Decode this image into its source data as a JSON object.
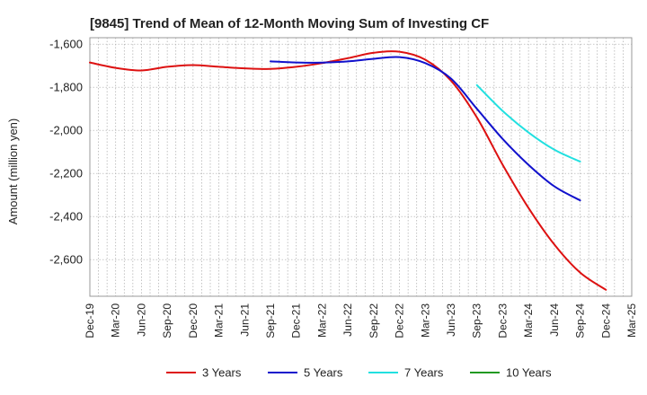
{
  "chart_data": {
    "type": "line",
    "title": "[9845]  Trend of Mean of 12-Month Moving Sum of Investing CF",
    "xlabel": "",
    "ylabel": "Amount (million yen)",
    "ylim": [
      -2770,
      -1570
    ],
    "yticks": [
      -1600,
      -1800,
      -2000,
      -2200,
      -2400,
      -2600
    ],
    "ytick_labels": [
      "-1,600",
      "-1,800",
      "-2,000",
      "-2,200",
      "-2,400",
      "-2,600"
    ],
    "grid": true,
    "legend_position": "bottom",
    "xtick_labels": [
      "Dec-19",
      "Mar-20",
      "Jun-20",
      "Sep-20",
      "Dec-20",
      "Mar-21",
      "Jun-21",
      "Sep-21",
      "Dec-21",
      "Mar-22",
      "Jun-22",
      "Sep-22",
      "Dec-22",
      "Mar-23",
      "Jun-23",
      "Sep-23",
      "Dec-23",
      "Mar-24",
      "Jun-24",
      "Sep-24",
      "Dec-24",
      "Mar-25"
    ],
    "x_start": "Dec-19",
    "x_end": "Mar-25",
    "series": [
      {
        "name": "3 Years",
        "color": "#dd1111",
        "points": [
          [
            "Dec-19",
            -1685
          ],
          [
            "Mar-20",
            -1710
          ],
          [
            "Jun-20",
            -1722
          ],
          [
            "Sep-20",
            -1705
          ],
          [
            "Dec-20",
            -1697
          ],
          [
            "Mar-21",
            -1705
          ],
          [
            "Jun-21",
            -1712
          ],
          [
            "Sep-21",
            -1715
          ],
          [
            "Dec-21",
            -1705
          ],
          [
            "Mar-22",
            -1688
          ],
          [
            "Jun-22",
            -1665
          ],
          [
            "Sep-22",
            -1640
          ],
          [
            "Dec-22",
            -1635
          ],
          [
            "Mar-23",
            -1672
          ],
          [
            "Jun-23",
            -1770
          ],
          [
            "Sep-23",
            -1940
          ],
          [
            "Dec-23",
            -2160
          ],
          [
            "Mar-24",
            -2360
          ],
          [
            "Jun-24",
            -2530
          ],
          [
            "Sep-24",
            -2660
          ],
          [
            "Dec-24",
            -2740
          ]
        ]
      },
      {
        "name": "5 Years",
        "color": "#1111cc",
        "points": [
          [
            "Sep-21",
            -1680
          ],
          [
            "Dec-21",
            -1685
          ],
          [
            "Mar-22",
            -1686
          ],
          [
            "Jun-22",
            -1680
          ],
          [
            "Sep-22",
            -1668
          ],
          [
            "Dec-22",
            -1660
          ],
          [
            "Mar-23",
            -1688
          ],
          [
            "Jun-23",
            -1760
          ],
          [
            "Sep-23",
            -1900
          ],
          [
            "Dec-23",
            -2040
          ],
          [
            "Mar-24",
            -2160
          ],
          [
            "Jun-24",
            -2260
          ],
          [
            "Sep-24",
            -2325
          ]
        ]
      },
      {
        "name": "7 Years",
        "color": "#22e0e0",
        "points": [
          [
            "Sep-23",
            -1790
          ],
          [
            "Dec-23",
            -1910
          ],
          [
            "Mar-24",
            -2010
          ],
          [
            "Jun-24",
            -2090
          ],
          [
            "Sep-24",
            -2145
          ]
        ]
      },
      {
        "name": "10 Years",
        "color": "#229922",
        "points": []
      }
    ]
  }
}
